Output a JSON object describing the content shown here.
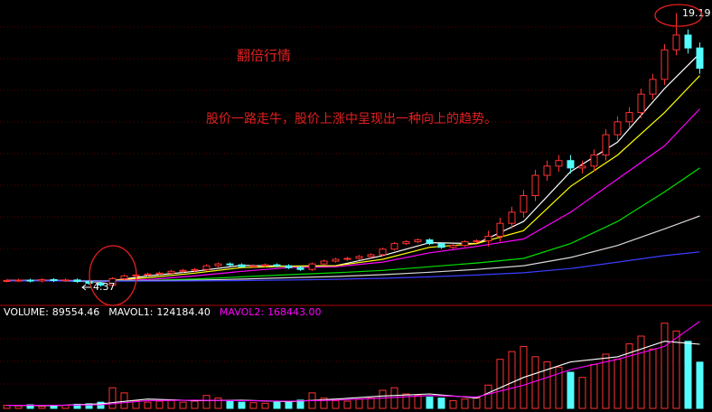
{
  "chart_data": [
    {
      "type": "candlestick",
      "annotations": [
        "翻倍行情",
        "股价一路走牛，股价上涨中呈现出一种向上的趋势。"
      ],
      "up_color": "#ff3232",
      "down_color": "#54fcfc",
      "ylim": [
        3.5,
        19.9
      ],
      "open": [
        4.68,
        4.7,
        4.72,
        4.68,
        4.75,
        4.7,
        4.73,
        4.65,
        4.55,
        4.45,
        4.8,
        4.95,
        5.0,
        5.05,
        5.1,
        5.2,
        5.25,
        5.3,
        5.5,
        5.6,
        5.55,
        5.45,
        5.5,
        5.55,
        5.5,
        5.4,
        5.3,
        5.6,
        5.75,
        5.85,
        5.9,
        6.0,
        6.1,
        6.4,
        6.7,
        6.8,
        6.9,
        6.7,
        6.5,
        6.6,
        6.8,
        6.85,
        7.1,
        7.8,
        8.4,
        9.3,
        10.4,
        10.9,
        11.2,
        10.8,
        10.9,
        11.5,
        12.6,
        13.3,
        13.8,
        14.8,
        15.6,
        17.2,
        18.0,
        17.3
      ],
      "high": [
        4.78,
        4.8,
        4.8,
        4.83,
        4.83,
        4.81,
        4.81,
        4.73,
        4.63,
        4.88,
        5.03,
        5.08,
        5.13,
        5.18,
        5.28,
        5.33,
        5.38,
        5.58,
        5.68,
        5.68,
        5.63,
        5.58,
        5.63,
        5.63,
        5.58,
        5.48,
        5.68,
        5.83,
        5.93,
        5.98,
        6.08,
        6.18,
        6.48,
        6.78,
        6.88,
        6.98,
        6.98,
        6.78,
        6.68,
        6.88,
        6.93,
        7.4,
        8.1,
        8.7,
        9.6,
        10.7,
        11.2,
        11.5,
        11.5,
        11.2,
        11.8,
        12.9,
        13.6,
        14.1,
        15.1,
        15.9,
        17.5,
        19.19,
        18.3,
        17.6
      ],
      "low": [
        4.6,
        4.62,
        4.6,
        4.6,
        4.62,
        4.62,
        4.57,
        4.47,
        4.37,
        4.4,
        4.72,
        4.87,
        4.92,
        4.97,
        5.02,
        5.12,
        5.17,
        5.22,
        5.42,
        5.47,
        5.37,
        5.37,
        5.42,
        5.42,
        5.32,
        5.22,
        5.22,
        5.52,
        5.67,
        5.77,
        5.82,
        5.92,
        6.02,
        6.32,
        6.62,
        6.72,
        6.62,
        6.42,
        6.42,
        6.52,
        6.72,
        6.55,
        6.8,
        7.5,
        8.1,
        9.0,
        10.1,
        10.6,
        10.5,
        10.5,
        10.6,
        11.2,
        12.3,
        13.0,
        13.5,
        14.5,
        15.3,
        16.9,
        17.0,
        15.9
      ],
      "close": [
        4.7,
        4.72,
        4.68,
        4.75,
        4.7,
        4.73,
        4.65,
        4.55,
        4.45,
        4.8,
        4.95,
        5.0,
        5.05,
        5.1,
        5.2,
        5.25,
        5.3,
        5.5,
        5.6,
        5.55,
        5.45,
        5.5,
        5.55,
        5.5,
        5.4,
        5.3,
        5.6,
        5.75,
        5.85,
        5.9,
        6.0,
        6.1,
        6.4,
        6.7,
        6.8,
        6.9,
        6.7,
        6.5,
        6.6,
        6.8,
        6.85,
        7.1,
        7.8,
        8.4,
        9.3,
        10.4,
        10.9,
        11.2,
        10.8,
        10.9,
        11.5,
        12.6,
        13.3,
        13.8,
        14.8,
        15.6,
        17.2,
        18.0,
        17.3,
        16.2
      ],
      "lines": [
        {
          "color": "#ffffff",
          "x": [
            0,
            4,
            8,
            12,
            16,
            20,
            24,
            28,
            32,
            36,
            40,
            44,
            48,
            52,
            56,
            59
          ],
          "values": [
            4.7,
            4.7,
            4.62,
            4.95,
            5.2,
            5.52,
            5.48,
            5.5,
            6.05,
            6.75,
            6.7,
            7.9,
            10.6,
            12.2,
            15.1,
            17.0
          ]
        },
        {
          "color": "#ffff00",
          "x": [
            0,
            4,
            8,
            12,
            16,
            20,
            24,
            28,
            32,
            36,
            40,
            44,
            48,
            52,
            56,
            59
          ],
          "values": [
            4.7,
            4.7,
            4.66,
            4.85,
            5.1,
            5.4,
            5.48,
            5.5,
            5.85,
            6.5,
            6.7,
            7.4,
            9.8,
            11.5,
            13.8,
            15.8
          ]
        },
        {
          "color": "#ff00ff",
          "x": [
            0,
            4,
            8,
            12,
            16,
            20,
            24,
            28,
            32,
            36,
            40,
            44,
            48,
            52,
            56,
            59
          ],
          "values": [
            4.72,
            4.72,
            4.68,
            4.75,
            4.95,
            5.2,
            5.4,
            5.45,
            5.7,
            6.2,
            6.55,
            6.95,
            8.4,
            10.2,
            12.0,
            14.0
          ]
        },
        {
          "color": "#00e000",
          "x": [
            0,
            4,
            8,
            12,
            16,
            20,
            24,
            28,
            32,
            36,
            40,
            44,
            48,
            52,
            56,
            59
          ],
          "values": [
            4.7,
            4.7,
            4.68,
            4.7,
            4.78,
            4.9,
            5.02,
            5.12,
            5.25,
            5.45,
            5.65,
            5.9,
            6.7,
            7.9,
            9.5,
            10.8
          ]
        },
        {
          "color": "#d8d8d8",
          "x": [
            0,
            4,
            8,
            12,
            16,
            20,
            24,
            28,
            32,
            36,
            40,
            44,
            48,
            52,
            56,
            59
          ],
          "values": [
            4.7,
            4.7,
            4.68,
            4.69,
            4.72,
            4.78,
            4.85,
            4.92,
            5.02,
            5.15,
            5.3,
            5.5,
            5.95,
            6.6,
            7.5,
            8.2
          ]
        },
        {
          "color": "#3c3cff",
          "x": [
            0,
            4,
            8,
            12,
            16,
            20,
            24,
            28,
            32,
            36,
            40,
            44,
            48,
            52,
            56,
            59
          ],
          "values": [
            4.68,
            4.68,
            4.67,
            4.67,
            4.68,
            4.7,
            4.73,
            4.77,
            4.82,
            4.9,
            5.0,
            5.12,
            5.35,
            5.7,
            6.05,
            6.25
          ]
        }
      ]
    },
    {
      "type": "volume",
      "readouts": [
        {
          "name": "VOLUME:",
          "value": 89554.46,
          "color": "#ffffff"
        },
        {
          "name": "MAVOL1:",
          "value": {
            "value": 124184.4,
            "label": "124184.40"
          },
          "color": "#ffffff"
        },
        {
          "name": "MAVOL2:",
          "value": {
            "value": 168443,
            "label": "168443.00"
          },
          "color": "#ff00ff"
        }
      ],
      "ylim": [
        0,
        175000
      ],
      "values": [
        6000,
        5000,
        7000,
        4000,
        5000,
        6000,
        8000,
        9000,
        12000,
        40000,
        30000,
        15000,
        12000,
        14000,
        16000,
        12000,
        14000,
        25000,
        20000,
        15000,
        12000,
        11000,
        10000,
        12000,
        14000,
        16000,
        30000,
        20000,
        15000,
        14000,
        18000,
        20000,
        35000,
        40000,
        28000,
        25000,
        22000,
        20000,
        15000,
        18000,
        20000,
        45000,
        95000,
        110000,
        120000,
        100000,
        90000,
        80000,
        70000,
        60000,
        85000,
        105000,
        95000,
        125000,
        140000,
        115000,
        165000,
        150000,
        130000,
        89554.46
      ],
      "lines": [
        {
          "color": "#ffffff",
          "x": [
            0,
            4,
            8,
            12,
            16,
            20,
            24,
            28,
            32,
            36,
            40,
            44,
            48,
            52,
            56,
            59
          ],
          "values": [
            6000,
            5500,
            9000,
            18000,
            15000,
            16000,
            13000,
            18000,
            24000,
            28000,
            20000,
            60000,
            90000,
            100000,
            130000,
            124184.4
          ]
        },
        {
          "color": "#ff00ff",
          "x": [
            0,
            4,
            8,
            12,
            16,
            20,
            24,
            28,
            32,
            36,
            40,
            44,
            48,
            52,
            56,
            59
          ],
          "values": [
            6000,
            6000,
            7000,
            15000,
            16000,
            15000,
            14000,
            16000,
            20000,
            25000,
            22000,
            45000,
            75000,
            95000,
            120000,
            168443
          ]
        }
      ]
    }
  ]
}
